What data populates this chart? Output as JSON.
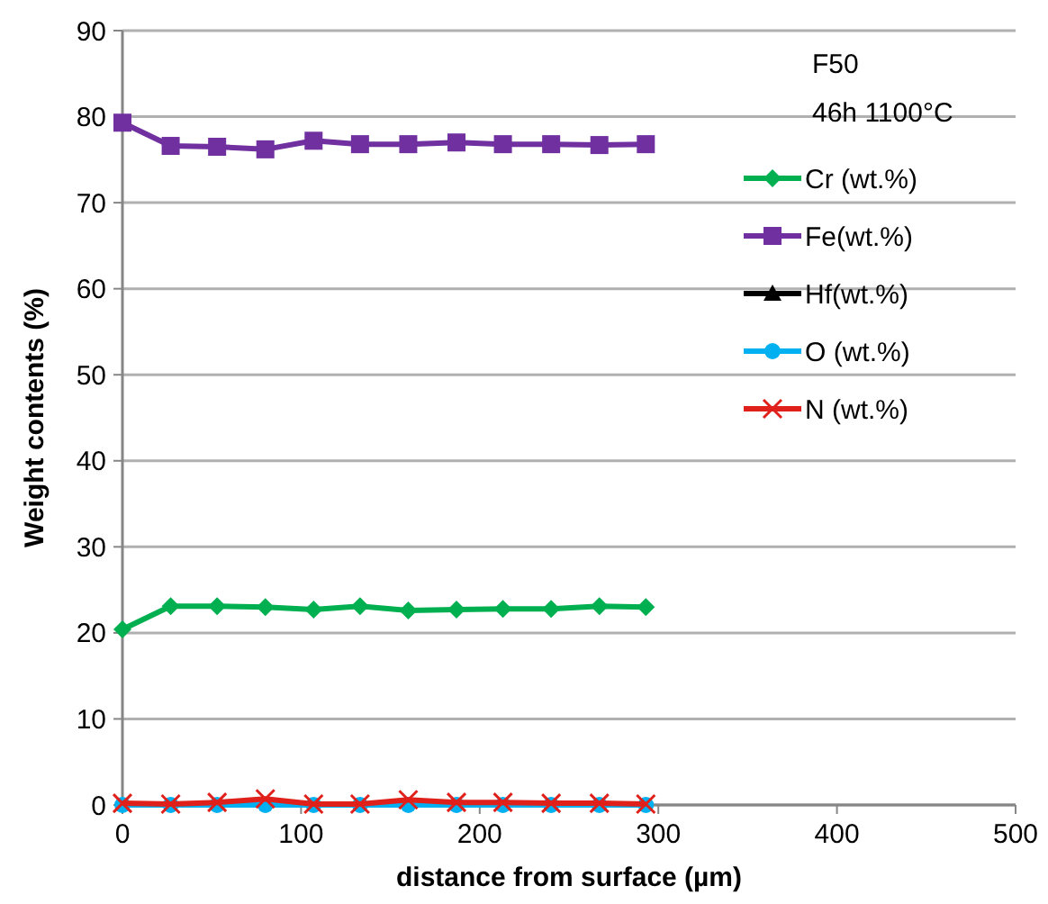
{
  "chart_data": {
    "type": "line",
    "xlabel": "distance from surface (µm)",
    "ylabel": "Weight contents (%)",
    "legend_title": "F50",
    "annotations": [
      "46h 1100°C"
    ],
    "x": [
      0,
      27,
      53,
      80,
      107,
      133,
      160,
      187,
      213,
      240,
      267,
      293
    ],
    "xlim": [
      0,
      500
    ],
    "xticks": [
      0,
      100,
      200,
      300,
      400,
      500
    ],
    "ylim": [
      0,
      90
    ],
    "yticks": [
      0,
      10,
      20,
      30,
      40,
      50,
      60,
      70,
      80,
      90
    ],
    "grid": "y",
    "legend": "top right",
    "line_style": "solid",
    "series": [
      {
        "name": "Cr (wt.%)",
        "color": "#00b050",
        "marker": "diamond",
        "values": [
          20.4,
          23.1,
          23.1,
          23.0,
          22.7,
          23.1,
          22.6,
          22.7,
          22.8,
          22.8,
          23.1,
          23.0
        ]
      },
      {
        "name": "Fe(wt.%)",
        "color": "#7030a0",
        "marker": "square",
        "values": [
          79.3,
          76.6,
          76.5,
          76.2,
          77.2,
          76.8,
          76.8,
          77.0,
          76.8,
          76.8,
          76.7,
          76.8
        ]
      },
      {
        "name": "Hf(wt.%)",
        "color": "#000000",
        "marker": "triangle",
        "values": [
          null,
          null,
          null,
          null,
          null,
          null,
          null,
          null,
          null,
          null,
          null,
          null
        ]
      },
      {
        "name": "O (wt.%)",
        "color": "#00b0f0",
        "marker": "circle",
        "values": [
          0,
          0,
          0,
          0,
          0,
          0,
          0,
          0,
          0,
          0,
          0,
          0
        ]
      },
      {
        "name": "N (wt.%)",
        "color": "#e0201b",
        "marker": "cross",
        "values": [
          0.2,
          0.1,
          0.3,
          0.7,
          0.1,
          0.1,
          0.6,
          0.3,
          0.3,
          0.2,
          0.2,
          0.1
        ]
      }
    ]
  }
}
